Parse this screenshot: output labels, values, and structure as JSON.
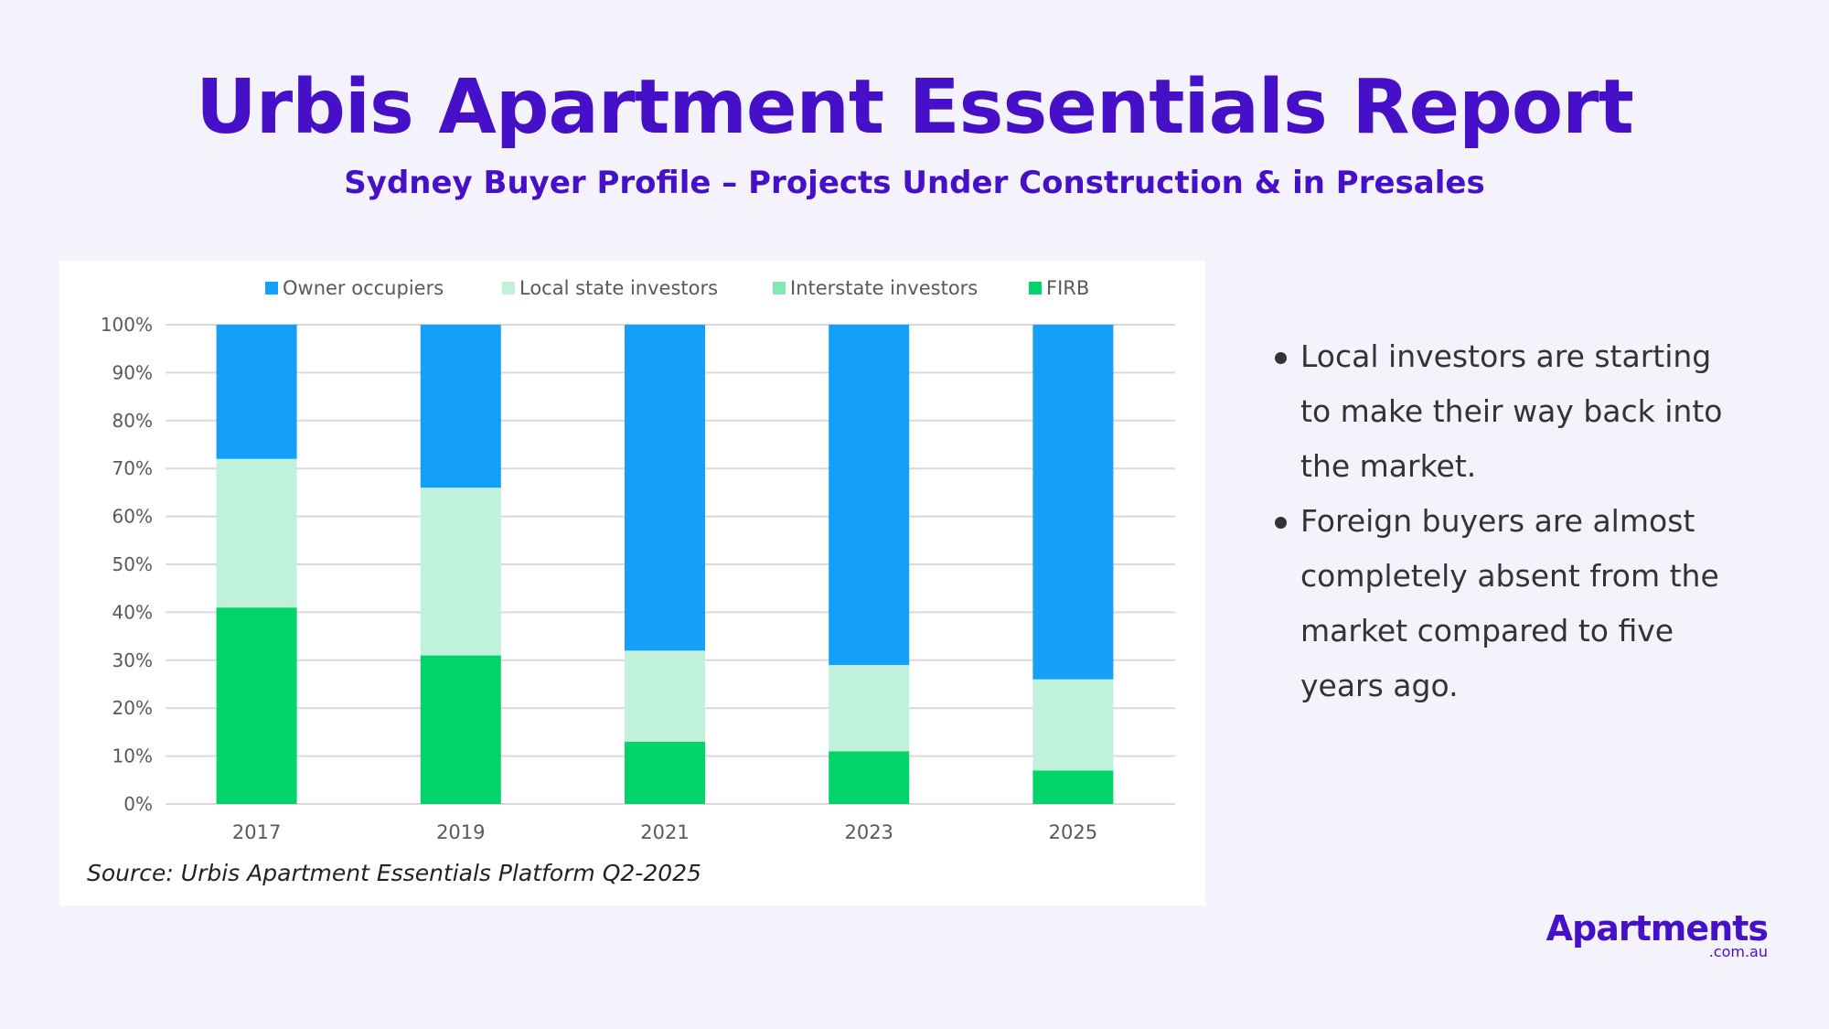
{
  "header": {
    "title": "Urbis Apartment Essentials Report",
    "subtitle": "Sydney Buyer Profile – Projects Under Construction & in Presales"
  },
  "chart": {
    "source": "Source: Urbis Apartment Essentials Platform Q2-2025"
  },
  "bullets": [
    "Local investors are starting to make their way back into the market.",
    "Foreign buyers are almost completely absent from the market compared to five years ago."
  ],
  "logo": {
    "main": "Apartments",
    "sub": ".com.au"
  },
  "colors": {
    "accent": "#4510c8",
    "owner_occupiers": "#14a0fa",
    "local_state_investors": "#c0f1db",
    "interstate_investors": "#86e6b4",
    "firb": "#02d46a"
  },
  "chart_data": {
    "type": "bar",
    "stacked": true,
    "categories": [
      "2017",
      "2019",
      "2021",
      "2023",
      "2025"
    ],
    "series": [
      {
        "name": "FIRB",
        "color": "#02d46a",
        "values": [
          41,
          31,
          13,
          11,
          7
        ]
      },
      {
        "name": "Interstate investors",
        "color": "#86e6b4",
        "values": [
          0,
          0,
          0,
          0,
          0
        ]
      },
      {
        "name": "Local state investors",
        "color": "#c0f1db",
        "values": [
          31,
          35,
          19,
          18,
          19
        ]
      },
      {
        "name": "Owner occupiers",
        "color": "#14a0fa",
        "values": [
          28,
          34,
          68,
          71,
          74
        ]
      }
    ],
    "legend_order": [
      "Owner occupiers",
      "Local state investors",
      "Interstate investors",
      "FIRB"
    ],
    "y_ticks": [
      "0%",
      "10%",
      "20%",
      "30%",
      "40%",
      "50%",
      "60%",
      "70%",
      "80%",
      "90%",
      "100%"
    ],
    "ylim": [
      0,
      100
    ],
    "grid": true,
    "legend_position": "top"
  }
}
